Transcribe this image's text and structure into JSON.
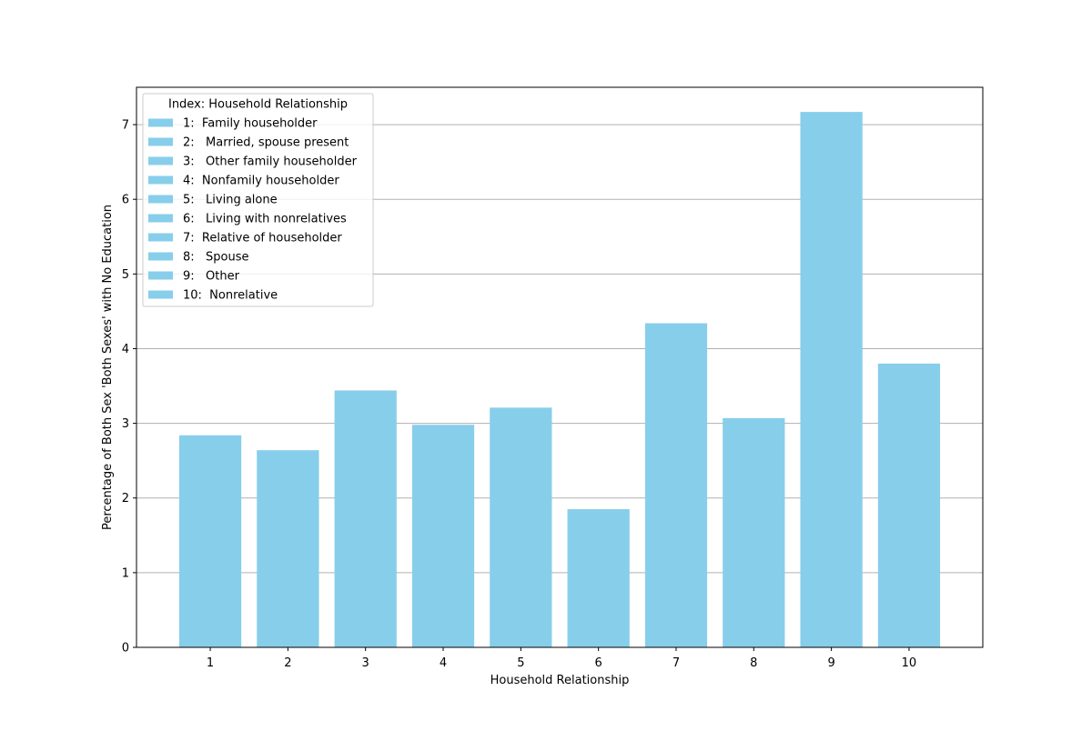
{
  "chart_data": {
    "type": "bar",
    "title": "",
    "xlabel": "Household Relationship",
    "ylabel": "Percentage of Both Sex 'Both Sexes' with No Education",
    "categories": [
      "1",
      "2",
      "3",
      "4",
      "5",
      "6",
      "7",
      "8",
      "9",
      "10"
    ],
    "values": [
      2.84,
      2.64,
      3.44,
      2.98,
      3.21,
      1.85,
      4.34,
      3.07,
      7.17,
      3.8
    ],
    "ylim": [
      0,
      7.5
    ],
    "yticks": [
      "0",
      "1",
      "2",
      "3",
      "4",
      "5",
      "6",
      "7"
    ],
    "grid": "y-axis horizontal lines",
    "bar_color": "#87CEEB",
    "grid_color": "#b0b0b0",
    "legend": {
      "placement": "top-left",
      "title": "Index: Household Relationship",
      "entries": [
        "1:  Family householder",
        "2:   Married, spouse present",
        "3:   Other family householder",
        "4:  Nonfamily householder",
        "5:   Living alone",
        "6:   Living with nonrelatives",
        "7:  Relative of householder",
        "8:   Spouse",
        "9:   Other",
        "10:  Nonrelative"
      ]
    }
  }
}
